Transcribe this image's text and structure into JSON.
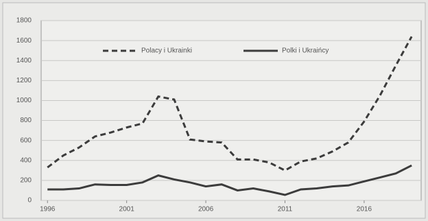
{
  "chart_data": {
    "type": "line",
    "x": [
      1996,
      1997,
      1998,
      1999,
      2000,
      2001,
      2002,
      2003,
      2004,
      2005,
      2006,
      2007,
      2008,
      2009,
      2010,
      2011,
      2012,
      2013,
      2014,
      2015,
      2016,
      2017,
      2018,
      2019
    ],
    "series": [
      {
        "name": "Polacy i Ukrainki",
        "color": "#3c3c3c",
        "linestyle": "dashed",
        "values": [
          330,
          450,
          530,
          640,
          680,
          730,
          770,
          1040,
          1010,
          610,
          590,
          580,
          410,
          410,
          380,
          300,
          390,
          420,
          490,
          580,
          790,
          1050,
          1350,
          1640
        ]
      },
      {
        "name": "Polki i Ukraińcy",
        "color": "#3c3c3c",
        "linestyle": "solid",
        "values": [
          110,
          110,
          120,
          160,
          155,
          155,
          180,
          250,
          210,
          180,
          140,
          160,
          100,
          120,
          90,
          55,
          110,
          120,
          140,
          150,
          190,
          230,
          270,
          350
        ]
      }
    ],
    "xlim": [
      1995.6,
      2019.6
    ],
    "xticks": [
      1996,
      2001,
      2006,
      2011,
      2016
    ],
    "ylim": [
      0,
      1800
    ],
    "yticks": [
      0,
      200,
      400,
      600,
      800,
      1000,
      1200,
      1400,
      1600,
      1800
    ],
    "grid": true
  }
}
